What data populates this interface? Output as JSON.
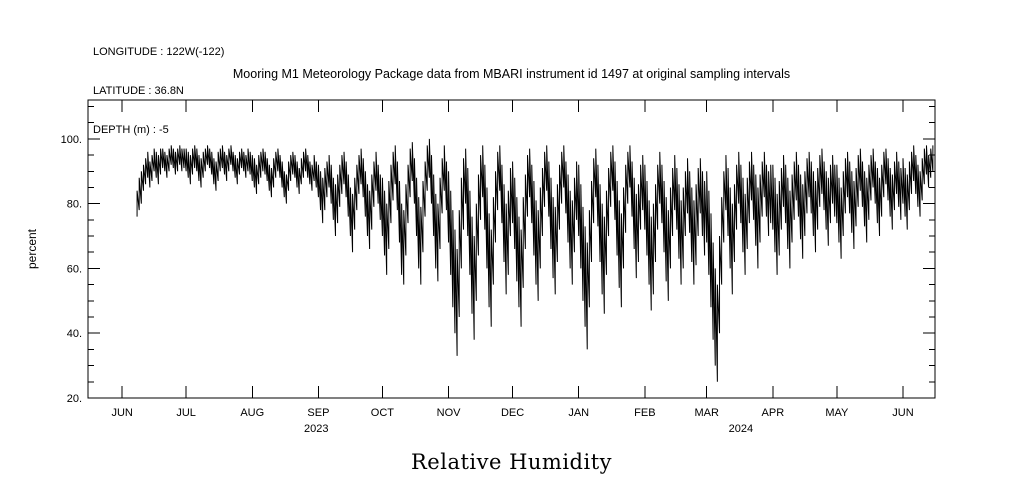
{
  "header": {
    "longitude": "LONGITUDE : 122W(-122)",
    "latitude": "LATITUDE : 36.8N",
    "depth": "DEPTH (m) : -5"
  },
  "title": "Mooring M1 Meteorology Package data from MBARI instrument id 1497 at original sampling intervals",
  "footer_title": "Relative Humidity",
  "colors": {
    "line": "#000000",
    "background": "#ffffff"
  },
  "chart_data": {
    "type": "line",
    "title": "Mooring M1 Meteorology Package data from MBARI instrument id 1497 at original sampling intervals",
    "xlabel": "Relative Humidity",
    "ylabel": "percent",
    "ylim": [
      20,
      112
    ],
    "yticks": [
      20,
      40,
      60,
      80,
      100
    ],
    "ytick_labels": [
      "20.",
      "40.",
      "60.",
      "80.",
      "100."
    ],
    "y_minor_step": 5,
    "grid": false,
    "legend": "none",
    "x_domain_days": [
      -16,
      381
    ],
    "month_ticks": [
      {
        "label": "JUN",
        "day": 0
      },
      {
        "label": "JUL",
        "day": 30
      },
      {
        "label": "AUG",
        "day": 61
      },
      {
        "label": "SEP",
        "day": 92
      },
      {
        "label": "OCT",
        "day": 122
      },
      {
        "label": "NOV",
        "day": 153
      },
      {
        "label": "DEC",
        "day": 183
      },
      {
        "label": "JAN",
        "day": 214
      },
      {
        "label": "FEB",
        "day": 245
      },
      {
        "label": "MAR",
        "day": 274
      },
      {
        "label": "APR",
        "day": 305
      },
      {
        "label": "MAY",
        "day": 335
      },
      {
        "label": "JUN",
        "day": 366
      }
    ],
    "year_labels": [
      {
        "label": "2023",
        "day": 91
      },
      {
        "label": "2024",
        "day": 290
      }
    ],
    "series_name": "relative_humidity_percent",
    "series_note": "daily [min,max] envelope of high-frequency relative humidity signal, starting 2023-06-08",
    "start_day": 7,
    "daily_envelope": [
      [
        76,
        84
      ],
      [
        78,
        88
      ],
      [
        80,
        90
      ],
      [
        84,
        92
      ],
      [
        86,
        94
      ],
      [
        88,
        96
      ],
      [
        85,
        93
      ],
      [
        87,
        95
      ],
      [
        90,
        97
      ],
      [
        88,
        96
      ],
      [
        86,
        95
      ],
      [
        89,
        97
      ],
      [
        91,
        97
      ],
      [
        90,
        96
      ],
      [
        88,
        95
      ],
      [
        90,
        97
      ],
      [
        92,
        98
      ],
      [
        91,
        97
      ],
      [
        89,
        96
      ],
      [
        90,
        97
      ],
      [
        92,
        98
      ],
      [
        90,
        97
      ],
      [
        91,
        97
      ],
      [
        90,
        97
      ],
      [
        88,
        96
      ],
      [
        86,
        95
      ],
      [
        89,
        97
      ],
      [
        91,
        98
      ],
      [
        90,
        97
      ],
      [
        87,
        95
      ],
      [
        85,
        94
      ],
      [
        88,
        96
      ],
      [
        90,
        97
      ],
      [
        92,
        98
      ],
      [
        91,
        97
      ],
      [
        89,
        96
      ],
      [
        86,
        94
      ],
      [
        84,
        93
      ],
      [
        87,
        96
      ],
      [
        90,
        97
      ],
      [
        91,
        98
      ],
      [
        89,
        96
      ],
      [
        87,
        95
      ],
      [
        90,
        97
      ],
      [
        92,
        98
      ],
      [
        90,
        96
      ],
      [
        88,
        95
      ],
      [
        86,
        94
      ],
      [
        89,
        96
      ],
      [
        91,
        97
      ],
      [
        90,
        96
      ],
      [
        88,
        95
      ],
      [
        90,
        97
      ],
      [
        89,
        96
      ],
      [
        87,
        95
      ],
      [
        85,
        94
      ],
      [
        83,
        92
      ],
      [
        86,
        95
      ],
      [
        88,
        96
      ],
      [
        90,
        97
      ],
      [
        89,
        96
      ],
      [
        87,
        94
      ],
      [
        84,
        92
      ],
      [
        82,
        91
      ],
      [
        85,
        94
      ],
      [
        88,
        96
      ],
      [
        90,
        97
      ],
      [
        88,
        95
      ],
      [
        85,
        93
      ],
      [
        82,
        90
      ],
      [
        80,
        89
      ],
      [
        84,
        93
      ],
      [
        87,
        95
      ],
      [
        89,
        96
      ],
      [
        88,
        95
      ],
      [
        85,
        93
      ],
      [
        83,
        91
      ],
      [
        86,
        94
      ],
      [
        88,
        96
      ],
      [
        90,
        97
      ],
      [
        88,
        95
      ],
      [
        86,
        93
      ],
      [
        84,
        92
      ],
      [
        87,
        95
      ],
      [
        85,
        93
      ],
      [
        82,
        92
      ],
      [
        78,
        90
      ],
      [
        74,
        88
      ],
      [
        78,
        91
      ],
      [
        82,
        93
      ],
      [
        85,
        95
      ],
      [
        80,
        92
      ],
      [
        75,
        88
      ],
      [
        70,
        86
      ],
      [
        74,
        89
      ],
      [
        79,
        92
      ],
      [
        83,
        95
      ],
      [
        86,
        96
      ],
      [
        82,
        93
      ],
      [
        76,
        89
      ],
      [
        70,
        85
      ],
      [
        65,
        83
      ],
      [
        72,
        88
      ],
      [
        78,
        92
      ],
      [
        83,
        95
      ],
      [
        86,
        97
      ],
      [
        82,
        94
      ],
      [
        76,
        90
      ],
      [
        70,
        86
      ],
      [
        66,
        84
      ],
      [
        72,
        89
      ],
      [
        79,
        93
      ],
      [
        84,
        96
      ],
      [
        80,
        92
      ],
      [
        75,
        89
      ],
      [
        70,
        88
      ],
      [
        64,
        84
      ],
      [
        58,
        80
      ],
      [
        66,
        87
      ],
      [
        74,
        92
      ],
      [
        81,
        96
      ],
      [
        86,
        98
      ],
      [
        78,
        93
      ],
      [
        68,
        87
      ],
      [
        58,
        80
      ],
      [
        55,
        78
      ],
      [
        64,
        86
      ],
      [
        74,
        92
      ],
      [
        82,
        97
      ],
      [
        87,
        99
      ],
      [
        80,
        94
      ],
      [
        70,
        88
      ],
      [
        60,
        82
      ],
      [
        55,
        79
      ],
      [
        65,
        87
      ],
      [
        76,
        93
      ],
      [
        84,
        98
      ],
      [
        88,
        100
      ],
      [
        80,
        95
      ],
      [
        70,
        89
      ],
      [
        60,
        83
      ],
      [
        56,
        80
      ],
      [
        66,
        88
      ],
      [
        77,
        94
      ],
      [
        84,
        98
      ],
      [
        78,
        93
      ],
      [
        68,
        90
      ],
      [
        58,
        84
      ],
      [
        48,
        78
      ],
      [
        40,
        72
      ],
      [
        33,
        66
      ],
      [
        45,
        78
      ],
      [
        60,
        88
      ],
      [
        72,
        94
      ],
      [
        80,
        97
      ],
      [
        70,
        91
      ],
      [
        58,
        84
      ],
      [
        46,
        76
      ],
      [
        38,
        70
      ],
      [
        50,
        80
      ],
      [
        64,
        89
      ],
      [
        75,
        95
      ],
      [
        82,
        98
      ],
      [
        72,
        92
      ],
      [
        60,
        85
      ],
      [
        48,
        77
      ],
      [
        42,
        72
      ],
      [
        55,
        82
      ],
      [
        68,
        90
      ],
      [
        78,
        96
      ],
      [
        84,
        98
      ],
      [
        74,
        92
      ],
      [
        62,
        86
      ],
      [
        52,
        80
      ],
      [
        58,
        84
      ],
      [
        70,
        91
      ],
      [
        74,
        93
      ],
      [
        66,
        88
      ],
      [
        56,
        82
      ],
      [
        48,
        76
      ],
      [
        42,
        72
      ],
      [
        54,
        82
      ],
      [
        66,
        89
      ],
      [
        76,
        95
      ],
      [
        82,
        97
      ],
      [
        74,
        92
      ],
      [
        64,
        87
      ],
      [
        55,
        81
      ],
      [
        50,
        78
      ],
      [
        60,
        85
      ],
      [
        70,
        91
      ],
      [
        79,
        96
      ],
      [
        84,
        98
      ],
      [
        76,
        93
      ],
      [
        66,
        88
      ],
      [
        57,
        82
      ],
      [
        52,
        79
      ],
      [
        62,
        86
      ],
      [
        72,
        92
      ],
      [
        80,
        96
      ],
      [
        85,
        98
      ],
      [
        77,
        93
      ],
      [
        68,
        89
      ],
      [
        60,
        84
      ],
      [
        55,
        81
      ],
      [
        65,
        88
      ],
      [
        75,
        93
      ],
      [
        70,
        92
      ],
      [
        60,
        86
      ],
      [
        50,
        79
      ],
      [
        42,
        73
      ],
      [
        35,
        68
      ],
      [
        48,
        78
      ],
      [
        62,
        87
      ],
      [
        74,
        94
      ],
      [
        82,
        97
      ],
      [
        73,
        92
      ],
      [
        62,
        86
      ],
      [
        52,
        80
      ],
      [
        46,
        76
      ],
      [
        58,
        84
      ],
      [
        70,
        91
      ],
      [
        79,
        96
      ],
      [
        84,
        98
      ],
      [
        75,
        93
      ],
      [
        64,
        87
      ],
      [
        54,
        81
      ],
      [
        48,
        77
      ],
      [
        60,
        85
      ],
      [
        71,
        92
      ],
      [
        80,
        96
      ],
      [
        85,
        98
      ],
      [
        76,
        93
      ],
      [
        66,
        88
      ],
      [
        57,
        83
      ],
      [
        62,
        86
      ],
      [
        72,
        92
      ],
      [
        78,
        95
      ],
      [
        72,
        92
      ],
      [
        64,
        87
      ],
      [
        55,
        81
      ],
      [
        47,
        76
      ],
      [
        52,
        80
      ],
      [
        62,
        86
      ],
      [
        72,
        92
      ],
      [
        80,
        96
      ],
      [
        74,
        92
      ],
      [
        65,
        87
      ],
      [
        56,
        82
      ],
      [
        50,
        78
      ],
      [
        60,
        85
      ],
      [
        70,
        91
      ],
      [
        78,
        95
      ],
      [
        72,
        91
      ],
      [
        63,
        86
      ],
      [
        55,
        81
      ],
      [
        60,
        85
      ],
      [
        70,
        90
      ],
      [
        77,
        94
      ],
      [
        71,
        90
      ],
      [
        62,
        85
      ],
      [
        55,
        81
      ],
      [
        61,
        86
      ],
      [
        70,
        91
      ],
      [
        77,
        94
      ],
      [
        70,
        90
      ],
      [
        64,
        87
      ],
      [
        68,
        90
      ],
      [
        58,
        84
      ],
      [
        48,
        77
      ],
      [
        38,
        68
      ],
      [
        30,
        60
      ],
      [
        25,
        55
      ],
      [
        40,
        70
      ],
      [
        55,
        82
      ],
      [
        68,
        90
      ],
      [
        78,
        95
      ],
      [
        70,
        91
      ],
      [
        60,
        85
      ],
      [
        52,
        80
      ],
      [
        62,
        86
      ],
      [
        72,
        92
      ],
      [
        80,
        96
      ],
      [
        74,
        92
      ],
      [
        65,
        88
      ],
      [
        58,
        83
      ],
      [
        66,
        88
      ],
      [
        74,
        93
      ],
      [
        81,
        96
      ],
      [
        75,
        92
      ],
      [
        67,
        89
      ],
      [
        60,
        85
      ],
      [
        68,
        89
      ],
      [
        76,
        93
      ],
      [
        82,
        96
      ],
      [
        76,
        92
      ],
      [
        70,
        90
      ],
      [
        74,
        92
      ],
      [
        72,
        92
      ],
      [
        65,
        88
      ],
      [
        58,
        83
      ],
      [
        64,
        87
      ],
      [
        72,
        91
      ],
      [
        79,
        95
      ],
      [
        74,
        92
      ],
      [
        66,
        88
      ],
      [
        60,
        84
      ],
      [
        68,
        89
      ],
      [
        75,
        93
      ],
      [
        81,
        96
      ],
      [
        76,
        92
      ],
      [
        69,
        89
      ],
      [
        63,
        86
      ],
      [
        70,
        90
      ],
      [
        77,
        94
      ],
      [
        82,
        96
      ],
      [
        77,
        93
      ],
      [
        70,
        90
      ],
      [
        65,
        87
      ],
      [
        72,
        91
      ],
      [
        79,
        95
      ],
      [
        83,
        97
      ],
      [
        78,
        93
      ],
      [
        72,
        90
      ],
      [
        67,
        88
      ],
      [
        74,
        92
      ],
      [
        80,
        95
      ],
      [
        76,
        92
      ],
      [
        74,
        92
      ],
      [
        68,
        88
      ],
      [
        63,
        85
      ],
      [
        70,
        90
      ],
      [
        77,
        94
      ],
      [
        82,
        96
      ],
      [
        77,
        93
      ],
      [
        71,
        90
      ],
      [
        66,
        87
      ],
      [
        73,
        91
      ],
      [
        79,
        95
      ],
      [
        84,
        97
      ],
      [
        79,
        93
      ],
      [
        73,
        90
      ],
      [
        68,
        88
      ],
      [
        75,
        92
      ],
      [
        81,
        95
      ],
      [
        85,
        97
      ],
      [
        80,
        93
      ],
      [
        74,
        91
      ],
      [
        70,
        88
      ],
      [
        76,
        92
      ],
      [
        82,
        96
      ],
      [
        86,
        97
      ],
      [
        81,
        94
      ],
      [
        76,
        91
      ],
      [
        72,
        89
      ],
      [
        78,
        93
      ],
      [
        83,
        96
      ],
      [
        79,
        93
      ],
      [
        75,
        91
      ],
      [
        80,
        94
      ],
      [
        76,
        91
      ],
      [
        72,
        89
      ],
      [
        78,
        93
      ],
      [
        83,
        96
      ],
      [
        87,
        98
      ],
      [
        83,
        95
      ],
      [
        79,
        92
      ],
      [
        76,
        90
      ],
      [
        81,
        94
      ],
      [
        86,
        97
      ],
      [
        89,
        98
      ],
      [
        85,
        95
      ],
      [
        88,
        97
      ],
      [
        90,
        98
      ]
    ]
  }
}
